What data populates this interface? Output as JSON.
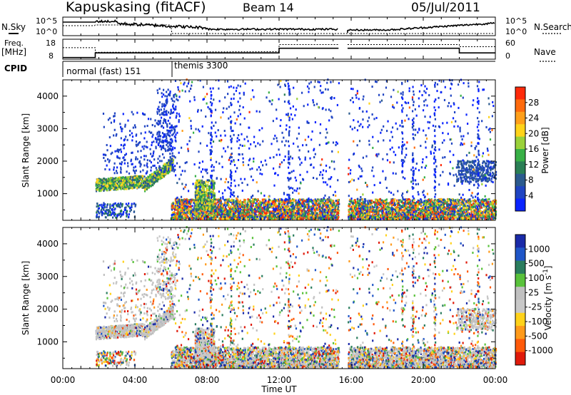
{
  "header": {
    "title": "Kapuskasing (fitACF)",
    "beam": "Beam 14",
    "date": "05/Jul/2011"
  },
  "top_panels": {
    "nsky_label": "N.Sky",
    "nsky_ticks": [
      "10^5",
      "10^0"
    ],
    "nsearch_label": "N.Search",
    "nsearch_ticks": [
      "10^5",
      "10^0"
    ],
    "freq_label": "Freq.",
    "freq_unit": "[MHz]",
    "freq_ticks": [
      "18",
      "8"
    ],
    "nave_label": "Nave",
    "nave_ticks": [
      "60",
      "0"
    ],
    "cpid_label": "CPID",
    "cpid_modes": [
      "normal (fast) 151",
      "themis 3300"
    ]
  },
  "colors": {
    "power": [
      "#0a24ff",
      "#1f44c2",
      "#2b5a8e",
      "#2a7f55",
      "#38b046",
      "#9ad13a",
      "#ffd31a",
      "#ff9f1a",
      "#ff6a0d",
      "#ff2a0a"
    ],
    "velocity": [
      "#1a2aa8",
      "#1f56c8",
      "#2a7d5e",
      "#59c23b",
      "#c0c0c0",
      "#c8c8c8",
      "#ffd21a",
      "#ff9a1a",
      "#ff5a0a",
      "#e01a0a"
    ]
  },
  "chart_data": [
    {
      "type": "heatmap",
      "title": "",
      "xlabel": "",
      "ylabel": "Slant Range [km]",
      "xlim": [
        0,
        24
      ],
      "ylim": [
        180,
        4500
      ],
      "x_tick_labels": [
        "00:00",
        "04:00",
        "08:00",
        "12:00",
        "16:00",
        "20:00",
        "00:00"
      ],
      "y_ticks": [
        1000,
        2000,
        3000,
        4000
      ],
      "y_tick_labels": [
        "1000",
        "2000",
        "3000",
        "4000"
      ],
      "colorbar": {
        "label": "Power [dB]",
        "range": [
          0,
          32
        ],
        "tick_labels": [
          "4",
          "8",
          "12",
          "16",
          "20",
          "24",
          "28"
        ]
      },
      "data_gap_hours": [
        15.3,
        15.8
      ],
      "cpid_change_hour": 6.1,
      "features": [
        {
          "start_hour": 1.8,
          "end_hour": 6.1,
          "range_km": [
            1100,
            1600
          ],
          "power_db": [
            8,
            20
          ]
        },
        {
          "start_hour": 4.0,
          "end_hour": 8.0,
          "range_km": [
            1500,
            3600
          ],
          "power_db": [
            4,
            8
          ]
        },
        {
          "start_hour": 7.3,
          "end_hour": 8.4,
          "range_km": [
            500,
            1400
          ],
          "power_db": [
            8,
            20
          ]
        },
        {
          "start_hour": 6.0,
          "end_hour": 24.0,
          "range_km": [
            180,
            800
          ],
          "power_db": [
            4,
            28
          ]
        },
        {
          "start_hour": 21.8,
          "end_hour": 24.0,
          "range_km": [
            1300,
            2100
          ],
          "power_db": [
            4,
            12
          ]
        }
      ]
    },
    {
      "type": "heatmap",
      "title": "",
      "xlabel": "Time UT",
      "ylabel": "Slant Range [km]",
      "xlim": [
        0,
        24
      ],
      "ylim": [
        180,
        4500
      ],
      "x_tick_labels": [
        "00:00",
        "04:00",
        "08:00",
        "12:00",
        "16:00",
        "20:00",
        "00:00"
      ],
      "y_ticks": [
        1000,
        2000,
        3000,
        4000
      ],
      "y_tick_labels": [
        "1000",
        "2000",
        "3000",
        "4000"
      ],
      "colorbar": {
        "label": "Velocity [m s^-1]",
        "tick_labels": [
          "1000",
          "500",
          "100",
          "25",
          "-25",
          "-100",
          "-500",
          "-1000"
        ]
      },
      "data_gap_hours": [
        15.3,
        15.8
      ],
      "features": [
        {
          "start_hour": 1.8,
          "end_hour": 6.3,
          "range_km": [
            1100,
            3200
          ],
          "velocity_ms": [
            -25,
            25
          ]
        },
        {
          "start_hour": 7.3,
          "end_hour": 8.4,
          "range_km": [
            500,
            1400
          ],
          "velocity_ms": [
            -25,
            25
          ]
        },
        {
          "start_hour": 6.0,
          "end_hour": 24.0,
          "range_km": [
            180,
            800
          ],
          "velocity_ms": [
            -1000,
            1000
          ]
        },
        {
          "start_hour": 21.8,
          "end_hour": 24.0,
          "range_km": [
            1300,
            2100
          ],
          "velocity_ms": [
            -25,
            25
          ]
        }
      ]
    }
  ]
}
